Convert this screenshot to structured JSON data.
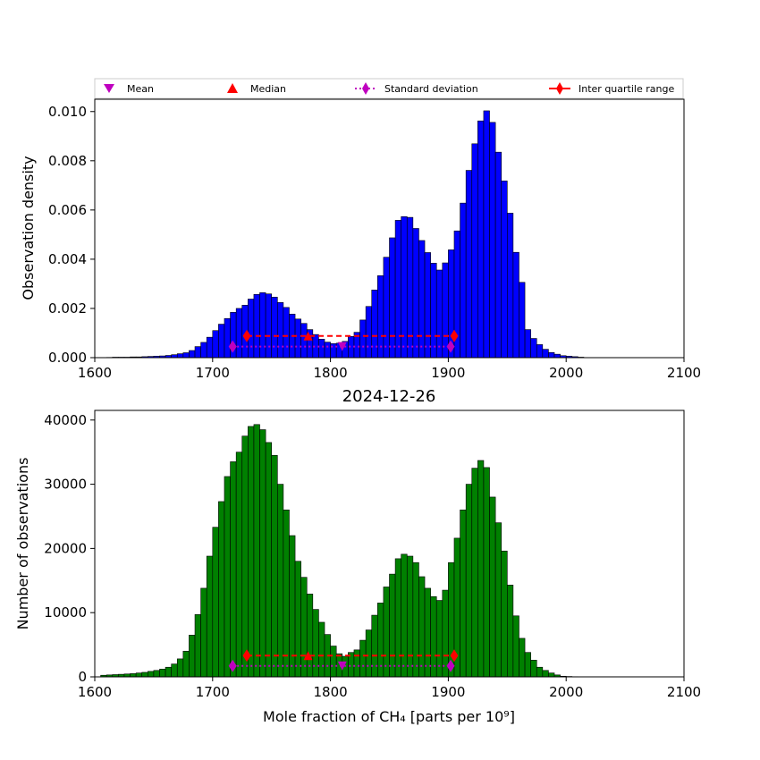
{
  "chart_data": [
    {
      "type": "bar",
      "title": "",
      "xlabel": "",
      "ylabel": "Observation density",
      "xlim": [
        1600,
        2100
      ],
      "ylim": [
        0,
        0.0105
      ],
      "xticks": [
        "1600",
        "1700",
        "1800",
        "1900",
        "2000",
        "2100"
      ],
      "yticks": [
        "0.000",
        "0.002",
        "0.004",
        "0.006",
        "0.008",
        "0.010"
      ],
      "bar_color": "#0000ff",
      "bin_start": 1610,
      "bin_width": 5,
      "values": [
        1e-05,
        2e-05,
        2e-05,
        2e-05,
        3e-05,
        3e-05,
        4e-05,
        5e-05,
        6e-05,
        7e-05,
        9e-05,
        0.00012,
        0.00016,
        0.0002,
        0.00029,
        0.00045,
        0.00062,
        0.00083,
        0.0011,
        0.00136,
        0.00159,
        0.00184,
        0.002,
        0.00213,
        0.00238,
        0.00257,
        0.00264,
        0.00259,
        0.00246,
        0.00224,
        0.00204,
        0.00177,
        0.00157,
        0.00139,
        0.00114,
        0.00094,
        0.00075,
        0.00063,
        0.00057,
        0.00059,
        0.00066,
        0.00086,
        0.00103,
        0.00153,
        0.00208,
        0.00275,
        0.00333,
        0.00408,
        0.00487,
        0.00558,
        0.00573,
        0.0057,
        0.00525,
        0.00476,
        0.00427,
        0.00384,
        0.00356,
        0.00385,
        0.00438,
        0.00515,
        0.00628,
        0.00761,
        0.00869,
        0.00962,
        0.01003,
        0.00956,
        0.00835,
        0.00718,
        0.00587,
        0.00428,
        0.00306,
        0.00114,
        0.00078,
        0.00053,
        0.00034,
        0.00021,
        0.00014,
        8e-05,
        6e-05,
        4e-05,
        2e-05
      ],
      "stats": {
        "mean": {
          "x": 1810,
          "y": 0.00045
        },
        "median": {
          "x": 1781,
          "y": 0.00088
        },
        "std_range": [
          1717,
          1902
        ],
        "std_y": 0.00045,
        "iqr_range": [
          1729,
          1905
        ],
        "iqr_y": 0.00088
      }
    },
    {
      "type": "bar",
      "title": "2024-12-26",
      "xlabel": "Mole fraction of CH₄ [parts per 10⁹]",
      "ylabel": "Number of observations",
      "xlim": [
        1600,
        2100
      ],
      "ylim": [
        0,
        41500
      ],
      "xticks": [
        "1600",
        "1700",
        "1800",
        "1900",
        "2000",
        "2100"
      ],
      "yticks": [
        "0",
        "10000",
        "20000",
        "30000",
        "40000"
      ],
      "bar_color": "#008000",
      "bin_start": 1605,
      "bin_width": 5,
      "values": [
        250,
        300,
        350,
        400,
        450,
        500,
        600,
        700,
        850,
        1000,
        1200,
        1500,
        2000,
        2800,
        4000,
        6500,
        9700,
        13800,
        18800,
        23300,
        27300,
        31200,
        33500,
        35000,
        37500,
        39000,
        39300,
        38500,
        36500,
        34500,
        30000,
        26000,
        22000,
        18000,
        15500,
        12900,
        10500,
        8500,
        6600,
        4800,
        3600,
        3200,
        3800,
        4200,
        5700,
        7300,
        9600,
        11500,
        14000,
        16000,
        18400,
        19100,
        18800,
        17800,
        15600,
        13800,
        12500,
        11900,
        13500,
        17800,
        21600,
        26000,
        30000,
        32500,
        33700,
        32600,
        28000,
        24000,
        19600,
        14300,
        9500,
        6000,
        3800,
        2600,
        1500,
        1000,
        600,
        300,
        100,
        60,
        30,
        10
      ],
      "stats": {
        "mean": {
          "x": 1810,
          "y": 1700
        },
        "median": {
          "x": 1781,
          "y": 3300
        },
        "std_range": [
          1717,
          1902
        ],
        "std_y": 1700,
        "iqr_range": [
          1729,
          1905
        ],
        "iqr_y": 3300
      }
    }
  ],
  "legend": {
    "placement": "top",
    "entries": [
      {
        "label": "Mean",
        "color": "#bf00bf",
        "marker": "triangle-down"
      },
      {
        "label": "Median",
        "color": "#ff0000",
        "marker": "triangle-up"
      },
      {
        "label": "Standard deviation",
        "color": "#bf00bf",
        "marker": "diamond",
        "line": "dotted"
      },
      {
        "label": "Inter quartile range",
        "color": "#ff0000",
        "marker": "diamond",
        "line": "solid"
      }
    ]
  }
}
